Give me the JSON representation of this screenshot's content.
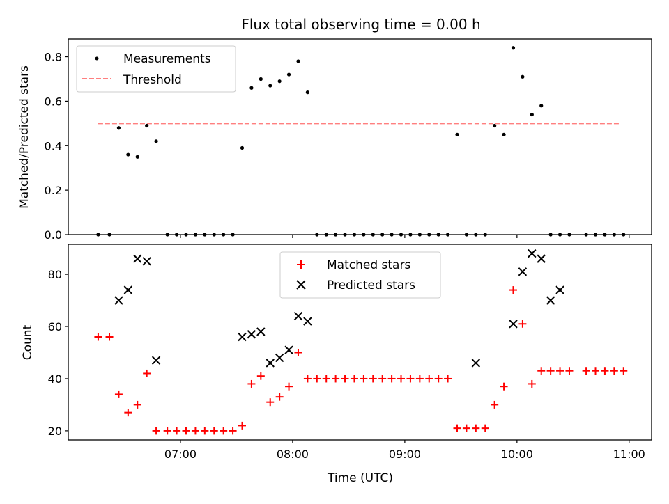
{
  "chart_data": [
    {
      "type": "scatter",
      "title": "Flux total observing time = 0.00 h",
      "xlabel": "",
      "ylabel": "Matched/Predicted stars",
      "ylim": [
        0,
        0.88
      ],
      "yticks": [
        "0.0",
        "0.2",
        "0.4",
        "0.6",
        "0.8"
      ],
      "x_is_time": true,
      "legend_position": "upper-left",
      "series": [
        {
          "name": "Measurements",
          "marker": "dot",
          "color": "#000000",
          "x": [
            "06:16",
            "06:22",
            "06:27",
            "06:32",
            "06:37",
            "06:42",
            "06:47",
            "06:53",
            "06:58",
            "07:03",
            "07:08",
            "07:13",
            "07:18",
            "07:23",
            "07:28",
            "07:33",
            "07:38",
            "07:43",
            "07:48",
            "07:53",
            "07:58",
            "08:03",
            "08:08",
            "08:13",
            "08:18",
            "08:23",
            "08:28",
            "08:33",
            "08:38",
            "08:43",
            "08:48",
            "08:53",
            "08:58",
            "09:03",
            "09:08",
            "09:13",
            "09:18",
            "09:23",
            "09:28",
            "09:33",
            "09:38",
            "09:43",
            "09:48",
            "09:53",
            "09:58",
            "10:03",
            "10:08",
            "10:13",
            "10:18",
            "10:23",
            "10:28",
            "10:37",
            "10:42",
            "10:47",
            "10:52",
            "10:57"
          ],
          "y": [
            0.0,
            0.0,
            0.48,
            0.36,
            0.35,
            0.49,
            0.42,
            0.0,
            0.0,
            0.0,
            0.0,
            0.0,
            0.0,
            0.0,
            0.0,
            0.39,
            0.66,
            0.7,
            0.67,
            0.69,
            0.72,
            0.78,
            0.64,
            0.0,
            0.0,
            0.0,
            0.0,
            0.0,
            0.0,
            0.0,
            0.0,
            0.0,
            0.0,
            0.0,
            0.0,
            0.0,
            0.0,
            0.0,
            0.45,
            0.0,
            0.0,
            0.0,
            0.49,
            0.45,
            0.84,
            0.71,
            0.54,
            0.58,
            0.0,
            0.0,
            0.0,
            0.0,
            0.0,
            0.0,
            0.0,
            0.0
          ]
        },
        {
          "name": "Threshold",
          "marker": "dashed-line",
          "color": "#ff7f7f",
          "x": [
            "06:16",
            "10:55"
          ],
          "y": [
            0.5,
            0.5
          ]
        }
      ]
    },
    {
      "type": "scatter",
      "title": "",
      "xlabel": "Time (UTC)",
      "ylabel": "Count",
      "ylim": [
        16.5,
        91.5
      ],
      "yticks": [
        "20",
        "40",
        "60",
        "80"
      ],
      "xlim": [
        "06:00",
        "11:12"
      ],
      "xticks": [
        "07:00",
        "08:00",
        "09:00",
        "10:00",
        "11:00"
      ],
      "legend_position": "upper-center",
      "series": [
        {
          "name": "Matched stars",
          "marker": "plus",
          "color": "#ff0000",
          "x": [
            "06:16",
            "06:22",
            "06:27",
            "06:32",
            "06:37",
            "06:42",
            "06:47",
            "06:53",
            "06:58",
            "07:03",
            "07:08",
            "07:13",
            "07:18",
            "07:23",
            "07:28",
            "07:33",
            "07:38",
            "07:43",
            "07:48",
            "07:53",
            "07:58",
            "08:03",
            "08:08",
            "08:13",
            "08:18",
            "08:23",
            "08:28",
            "08:33",
            "08:38",
            "08:43",
            "08:48",
            "08:53",
            "08:58",
            "09:03",
            "09:08",
            "09:13",
            "09:18",
            "09:23",
            "09:28",
            "09:33",
            "09:38",
            "09:43",
            "09:48",
            "09:53",
            "09:58",
            "10:03",
            "10:08",
            "10:13",
            "10:18",
            "10:23",
            "10:28",
            "10:37",
            "10:42",
            "10:47",
            "10:52",
            "10:57"
          ],
          "y": [
            56,
            56,
            34,
            27,
            30,
            42,
            20,
            20,
            20,
            20,
            20,
            20,
            20,
            20,
            20,
            22,
            38,
            41,
            31,
            33,
            37,
            50,
            40,
            40,
            40,
            40,
            40,
            40,
            40,
            40,
            40,
            40,
            40,
            40,
            40,
            40,
            40,
            40,
            21,
            21,
            21,
            21,
            30,
            37,
            74,
            61,
            38,
            43,
            43,
            43,
            43,
            43,
            43,
            43,
            43,
            43
          ]
        },
        {
          "name": "Predicted stars",
          "marker": "x",
          "color": "#000000",
          "x": [
            "06:27",
            "06:32",
            "06:37",
            "06:42",
            "06:47",
            "07:33",
            "07:38",
            "07:43",
            "07:48",
            "07:53",
            "07:58",
            "08:03",
            "08:08",
            "09:38",
            "09:58",
            "10:03",
            "10:08",
            "10:13",
            "10:18",
            "10:23"
          ],
          "y": [
            70,
            74,
            86,
            85,
            47,
            56,
            57,
            58,
            46,
            48,
            51,
            64,
            62,
            46,
            61,
            81,
            88,
            86,
            70,
            74
          ]
        }
      ]
    }
  ]
}
